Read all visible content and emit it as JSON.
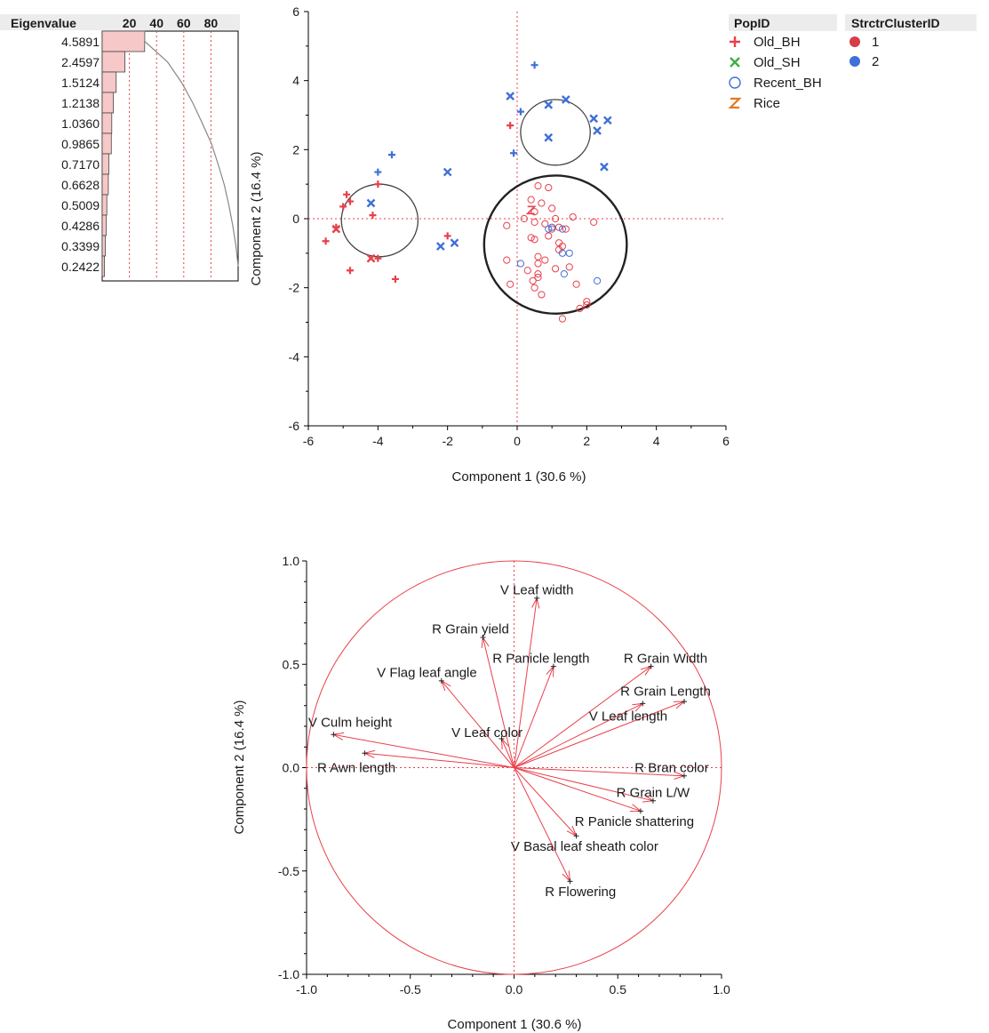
{
  "chart_data": [
    {
      "type": "bar",
      "title": "Eigenvalue",
      "axis_ticks": [
        "20",
        "40",
        "60",
        "80"
      ],
      "xlim": [
        0,
        100
      ],
      "categories": [
        "4.5891",
        "2.4597",
        "1.5124",
        "1.2138",
        "1.0360",
        "0.9865",
        "0.7170",
        "0.6628",
        "0.5009",
        "0.4286",
        "0.3399",
        "0.2422"
      ],
      "values": [
        4.5891,
        2.4597,
        1.5124,
        1.2138,
        1.036,
        0.9865,
        0.717,
        0.6628,
        0.5009,
        0.4286,
        0.3399,
        0.2422
      ],
      "bar_color": "#f7c8c8",
      "curve_color": "#888888",
      "grid_color": "#e8404a"
    },
    {
      "type": "scatter",
      "xlabel": "Component 1 (30.6 %)",
      "ylabel": "Component 2  (16.4 %)",
      "xlim": [
        -6,
        6
      ],
      "ylim": [
        -6,
        6
      ],
      "xticks": [
        "-6",
        "-4",
        "-2",
        "0",
        "2",
        "4",
        "6"
      ],
      "yticks": [
        "6",
        "4",
        "2",
        "0",
        "-2",
        "-4",
        "-6"
      ],
      "legend": {
        "pop_title": "PopID",
        "pop_items": [
          {
            "label": "Old_BH",
            "glyph": "+",
            "color": "#e8404a"
          },
          {
            "label": "Old_SH",
            "glyph": "×",
            "color": "#3fae49"
          },
          {
            "label": "Recent_BH",
            "glyph": "○",
            "color": "#3f6fd8"
          },
          {
            "label": "Rice",
            "glyph": "Z",
            "color": "#e07b21"
          }
        ],
        "cluster_title": "StrctrClusterID",
        "cluster_items": [
          {
            "label": "1",
            "color": "#d63d4b"
          },
          {
            "label": "2",
            "color": "#3f6fd8"
          }
        ]
      },
      "series": [
        {
          "name": "Old_BH",
          "cluster": "1",
          "marker": "plus",
          "color": "#e8404a",
          "x": [
            -5.5,
            -5.2,
            -4.9,
            -5.0,
            -4.8,
            -4.0,
            -4.15,
            -3.5,
            -4.0,
            -4.8,
            -2.0,
            -0.2
          ],
          "y": [
            -0.65,
            -0.25,
            0.7,
            0.35,
            -1.5,
            -1.15,
            0.1,
            -1.75,
            1.0,
            0.5,
            -0.5,
            2.7
          ]
        },
        {
          "name": "Old_BH",
          "cluster": "2",
          "marker": "plus",
          "color": "#3f6fd8",
          "x": [
            -4.0,
            -3.6,
            -0.1,
            0.5,
            0.1
          ],
          "y": [
            1.35,
            1.85,
            1.9,
            4.45,
            3.1
          ]
        },
        {
          "name": "Old_SH",
          "cluster": "1",
          "marker": "cross",
          "color": "#e8404a",
          "x": [
            -5.2,
            -4.2
          ],
          "y": [
            -0.3,
            -1.15
          ]
        },
        {
          "name": "Old_SH",
          "cluster": "2",
          "marker": "cross",
          "color": "#3f6fd8",
          "x": [
            -4.2,
            -2.2,
            -1.8,
            -2.0,
            -0.2,
            0.9,
            1.4,
            0.9,
            2.2,
            2.6,
            2.3,
            2.5
          ],
          "y": [
            0.45,
            -0.8,
            -0.7,
            1.35,
            3.55,
            3.3,
            3.45,
            2.35,
            2.9,
            2.85,
            2.55,
            1.5
          ]
        },
        {
          "name": "Recent_BH",
          "cluster": "1",
          "marker": "circle",
          "color": "#e8404a",
          "x": [
            0.6,
            0.9,
            0.4,
            0.7,
            1.0,
            0.5,
            0.2,
            1.1,
            1.6,
            2.2,
            -0.3,
            0.5,
            0.8,
            1.0,
            0.9,
            0.4,
            0.5,
            -0.3,
            -0.2,
            1.2,
            1.3,
            0.6,
            0.6,
            0.8,
            1.2,
            0.3,
            0.6,
            0.45,
            0.6,
            1.1,
            1.5,
            1.7,
            0.5,
            0.7,
            2.0,
            2.0,
            1.3,
            1.8,
            1.4,
            1.2
          ],
          "y": [
            0.95,
            0.9,
            0.55,
            0.45,
            0.3,
            0.2,
            0.0,
            0.0,
            0.05,
            -0.1,
            -0.2,
            -0.1,
            -0.15,
            -0.3,
            -0.5,
            -0.55,
            -0.6,
            -1.2,
            -1.9,
            -0.7,
            -0.8,
            -1.1,
            -1.3,
            -1.2,
            -0.9,
            -1.5,
            -1.6,
            -1.8,
            -1.7,
            -1.45,
            -1.4,
            -1.9,
            -2.0,
            -2.2,
            -2.4,
            -2.5,
            -2.9,
            -2.6,
            -0.3,
            -0.25
          ]
        },
        {
          "name": "Recent_BH",
          "cluster": "2",
          "marker": "circle",
          "color": "#3f6fd8",
          "x": [
            0.1,
            1.3,
            1.5,
            2.3,
            1.35,
            0.9,
            1.0,
            1.3
          ],
          "y": [
            -1.3,
            -1.0,
            -1.0,
            -1.8,
            -1.6,
            -0.3,
            -0.25,
            -0.3
          ]
        },
        {
          "name": "Rice",
          "cluster": "1",
          "marker": "z",
          "color": "#e8404a",
          "x": [
            0.4
          ],
          "y": [
            0.25
          ]
        }
      ],
      "ellipses": [
        {
          "cx": -3.95,
          "cy": -0.05,
          "rx": 1.1,
          "ry": 1.05
        },
        {
          "cx": 1.1,
          "cy": 2.5,
          "rx": 1.0,
          "ry": 0.95
        },
        {
          "cx": 1.1,
          "cy": -0.75,
          "rx": 2.05,
          "ry": 2.0
        }
      ],
      "ref_color": "#e8404a"
    },
    {
      "type": "loading-plot",
      "xlabel": "Component 1 (30.6 %)",
      "ylabel": "Component 2  (16.4 %)",
      "xlim": [
        -1.0,
        1.0
      ],
      "ylim": [
        -1.0,
        1.0
      ],
      "xticks": [
        "-1.0",
        "-0.5",
        "0.0",
        "0.5",
        "1.0"
      ],
      "yticks": [
        "1.0",
        "0.5",
        "0.0",
        "-0.5",
        "-1.0"
      ],
      "arrow_color": "#e8404a",
      "vectors": [
        {
          "label": "V Leaf width",
          "x": 0.11,
          "y": 0.82,
          "lx": 0.11,
          "ly": 0.86
        },
        {
          "label": "R Grain yield",
          "x": -0.15,
          "y": 0.63,
          "lx": -0.21,
          "ly": 0.67
        },
        {
          "label": "R Panicle length",
          "x": 0.19,
          "y": 0.49,
          "lx": 0.13,
          "ly": 0.53
        },
        {
          "label": "R Grain Width",
          "x": 0.66,
          "y": 0.49,
          "lx": 0.73,
          "ly": 0.53
        },
        {
          "label": "V Flag leaf angle",
          "x": -0.35,
          "y": 0.42,
          "lx": -0.42,
          "ly": 0.46
        },
        {
          "label": "R Grain Length",
          "x": 0.62,
          "y": 0.31,
          "lx": 0.73,
          "ly": 0.37
        },
        {
          "label": "V Leaf length",
          "x": 0.82,
          "y": 0.32,
          "lx": 0.55,
          "ly": 0.25
        },
        {
          "label": "V Culm height",
          "x": -0.87,
          "y": 0.16,
          "lx": -0.79,
          "ly": 0.22
        },
        {
          "label": "V Leaf color",
          "x": -0.06,
          "y": 0.14,
          "lx": -0.13,
          "ly": 0.17
        },
        {
          "label": "R Awn length",
          "x": -0.72,
          "y": 0.07,
          "lx": -0.76,
          "ly": 0.0
        },
        {
          "label": "R Bran color",
          "x": 0.82,
          "y": -0.04,
          "lx": 0.76,
          "ly": 0.0
        },
        {
          "label": "R Grain L/W",
          "x": 0.67,
          "y": -0.16,
          "lx": 0.67,
          "ly": -0.12
        },
        {
          "label": "R Panicle shattering",
          "x": 0.61,
          "y": -0.21,
          "lx": 0.58,
          "ly": -0.26
        },
        {
          "label": "V Basal leaf sheath color",
          "x": 0.3,
          "y": -0.33,
          "lx": 0.34,
          "ly": -0.38
        },
        {
          "label": "R Flowering",
          "x": 0.27,
          "y": -0.55,
          "lx": 0.32,
          "ly": -0.6
        }
      ]
    }
  ]
}
